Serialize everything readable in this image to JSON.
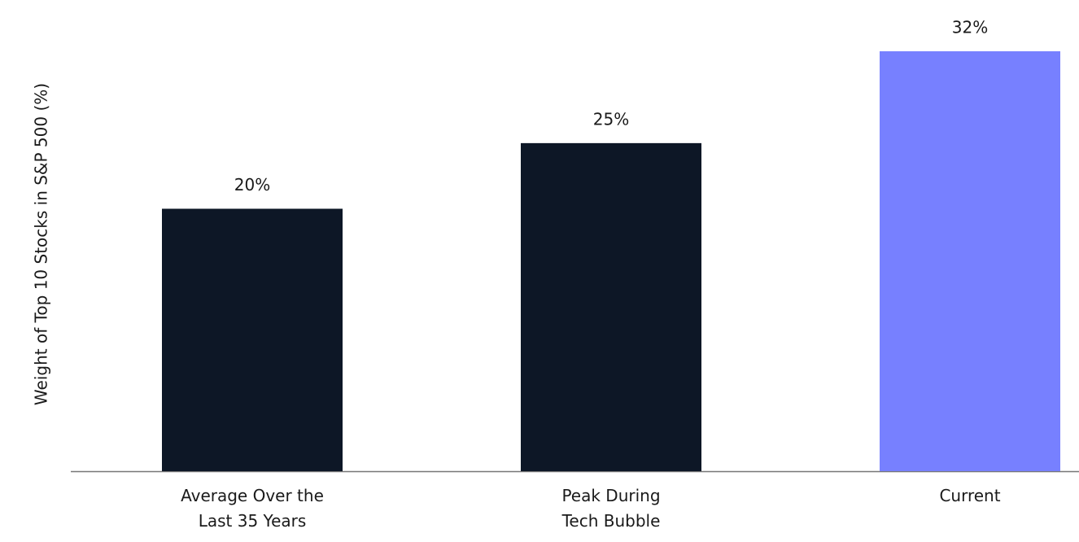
{
  "chart_data": {
    "type": "bar",
    "y_label": "Weight of Top 10 Stocks in S&P 500 (%)",
    "categories": [
      [
        "Average Over the",
        "Last 35 Years"
      ],
      [
        "Peak During",
        "Tech Bubble"
      ],
      [
        "Current"
      ]
    ],
    "values": [
      20,
      25,
      32
    ],
    "value_labels": [
      "20%",
      "25%",
      "32%"
    ],
    "colors": [
      "#0d1726",
      "#0d1726",
      "#7780ff"
    ]
  }
}
